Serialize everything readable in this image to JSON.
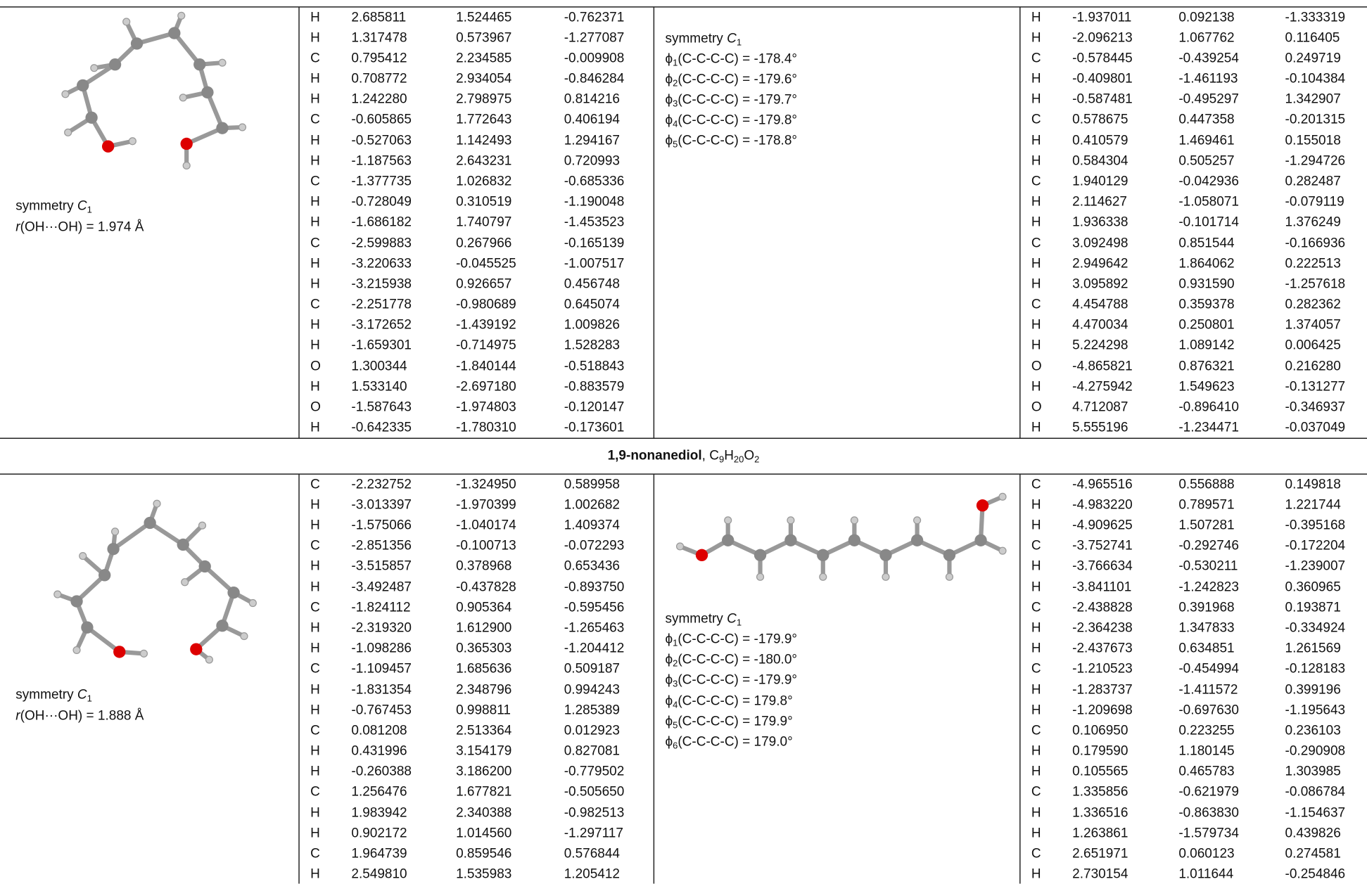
{
  "blocks": [
    {
      "left": {
        "symmetry": {
          "label": "symmetry",
          "group": "C",
          "sub": "1"
        },
        "distance": {
          "var": "r",
          "text": "(OH···OH) = 1.974 Å"
        }
      },
      "coords_a": [
        [
          "H",
          "2.685811",
          "1.524465",
          "-0.762371"
        ],
        [
          "H",
          "1.317478",
          "0.573967",
          "-1.277087"
        ],
        [
          "C",
          "0.795412",
          "2.234585",
          "-0.009908"
        ],
        [
          "H",
          "0.708772",
          "2.934054",
          "-0.846284"
        ],
        [
          "H",
          "1.242280",
          "2.798975",
          "0.814216"
        ],
        [
          "C",
          "-0.605865",
          "1.772643",
          "0.406194"
        ],
        [
          "H",
          "-0.527063",
          "1.142493",
          "1.294167"
        ],
        [
          "H",
          "-1.187563",
          "2.643231",
          "0.720993"
        ],
        [
          "C",
          "-1.377735",
          "1.026832",
          "-0.685336"
        ],
        [
          "H",
          "-0.728049",
          "0.310519",
          "-1.190048"
        ],
        [
          "H",
          "-1.686182",
          "1.740797",
          "-1.453523"
        ],
        [
          "C",
          "-2.599883",
          "0.267966",
          "-0.165139"
        ],
        [
          "H",
          "-3.220633",
          "-0.045525",
          "-1.007517"
        ],
        [
          "H",
          "-3.215938",
          "0.926657",
          "0.456748"
        ],
        [
          "C",
          "-2.251778",
          "-0.980689",
          "0.645074"
        ],
        [
          "H",
          "-3.172652",
          "-1.439192",
          "1.009826"
        ],
        [
          "H",
          "-1.659301",
          "-0.714975",
          "1.528283"
        ],
        [
          "O",
          "1.300344",
          "-1.840144",
          "-0.518843"
        ],
        [
          "H",
          "1.533140",
          "-2.697180",
          "-0.883579"
        ],
        [
          "O",
          "-1.587643",
          "-1.974803",
          "-0.120147"
        ],
        [
          "H",
          "-0.642335",
          "-1.780310",
          "-0.173601"
        ]
      ],
      "middle": {
        "symmetry": {
          "label": "symmetry",
          "group": "C",
          "sub": "1"
        },
        "dihedrals": [
          {
            "sym": "ϕ",
            "sub": "1",
            "text": "(C-C-C-C) = -178.4°"
          },
          {
            "sym": "ϕ",
            "sub": "2",
            "text": "(C-C-C-C) = -179.6°"
          },
          {
            "sym": "ϕ",
            "sub": "3",
            "text": "(C-C-C-C) = -179.7°"
          },
          {
            "sym": "ϕ",
            "sub": "4",
            "text": "(C-C-C-C) = -179.8°"
          },
          {
            "sym": "ϕ",
            "sub": "5",
            "text": "(C-C-C-C) = -178.8°"
          }
        ]
      },
      "coords_b": [
        [
          "H",
          "-1.937011",
          "0.092138",
          "-1.333319"
        ],
        [
          "H",
          "-2.096213",
          "1.067762",
          "0.116405"
        ],
        [
          "C",
          "-0.578445",
          "-0.439254",
          "0.249719"
        ],
        [
          "H",
          "-0.409801",
          "-1.461193",
          "-0.104384"
        ],
        [
          "H",
          "-0.587481",
          "-0.495297",
          "1.342907"
        ],
        [
          "C",
          "0.578675",
          "0.447358",
          "-0.201315"
        ],
        [
          "H",
          "0.410579",
          "1.469461",
          "0.155018"
        ],
        [
          "H",
          "0.584304",
          "0.505257",
          "-1.294726"
        ],
        [
          "C",
          "1.940129",
          "-0.042936",
          "0.282487"
        ],
        [
          "H",
          "2.114627",
          "-1.058071",
          "-0.079119"
        ],
        [
          "H",
          "1.936338",
          "-0.101714",
          "1.376249"
        ],
        [
          "C",
          "3.092498",
          "0.851544",
          "-0.166936"
        ],
        [
          "H",
          "2.949642",
          "1.864062",
          "0.222513"
        ],
        [
          "H",
          "3.095892",
          "0.931590",
          "-1.257618"
        ],
        [
          "C",
          "4.454788",
          "0.359378",
          "0.282362"
        ],
        [
          "H",
          "4.470034",
          "0.250801",
          "1.374057"
        ],
        [
          "H",
          "5.224298",
          "1.089142",
          "0.006425"
        ],
        [
          "O",
          "-4.865821",
          "0.876321",
          "0.216280"
        ],
        [
          "H",
          "-4.275942",
          "1.549623",
          "-0.131277"
        ],
        [
          "O",
          "4.712087",
          "-0.896410",
          "-0.346937"
        ],
        [
          "H",
          "5.555196",
          "-1.234471",
          "-0.037049"
        ]
      ]
    },
    {
      "left": {
        "symmetry": {
          "label": "symmetry",
          "group": "C",
          "sub": "1"
        },
        "distance": {
          "var": "r",
          "text": "(OH···OH) = 1.888 Å"
        }
      },
      "coords_a": [
        [
          "C",
          "-2.232752",
          "-1.324950",
          "0.589958"
        ],
        [
          "H",
          "-3.013397",
          "-1.970399",
          "1.002682"
        ],
        [
          "H",
          "-1.575066",
          "-1.040174",
          "1.409374"
        ],
        [
          "C",
          "-2.851356",
          "-0.100713",
          "-0.072293"
        ],
        [
          "H",
          "-3.515857",
          "0.378968",
          "0.653436"
        ],
        [
          "H",
          "-3.492487",
          "-0.437828",
          "-0.893750"
        ],
        [
          "C",
          "-1.824112",
          "0.905364",
          "-0.595456"
        ],
        [
          "H",
          "-2.319320",
          "1.612900",
          "-1.265463"
        ],
        [
          "H",
          "-1.098286",
          "0.365303",
          "-1.204412"
        ],
        [
          "C",
          "-1.109457",
          "1.685636",
          "0.509187"
        ],
        [
          "H",
          "-1.831354",
          "2.348796",
          "0.994243"
        ],
        [
          "H",
          "-0.767453",
          "0.998811",
          "1.285389"
        ],
        [
          "C",
          "0.081208",
          "2.513364",
          "0.012923"
        ],
        [
          "H",
          "0.431996",
          "3.154179",
          "0.827081"
        ],
        [
          "H",
          "-0.260388",
          "3.186200",
          "-0.779502"
        ],
        [
          "C",
          "1.256476",
          "1.677821",
          "-0.505650"
        ],
        [
          "H",
          "1.983942",
          "2.340388",
          "-0.982513"
        ],
        [
          "H",
          "0.902172",
          "1.014560",
          "-1.297117"
        ],
        [
          "C",
          "1.964739",
          "0.859546",
          "0.576844"
        ],
        [
          "H",
          "2.549810",
          "1.535983",
          "1.205412"
        ]
      ],
      "middle": {
        "symmetry": {
          "label": "symmetry",
          "group": "C",
          "sub": "1"
        },
        "dihedrals": [
          {
            "sym": "ϕ",
            "sub": "1",
            "text": "(C-C-C-C) = -179.9°"
          },
          {
            "sym": "ϕ",
            "sub": "2",
            "text": "(C-C-C-C) = -180.0°"
          },
          {
            "sym": "ϕ",
            "sub": "3",
            "text": "(C-C-C-C) = -179.9°"
          },
          {
            "sym": "ϕ",
            "sub": "4",
            "text": "(C-C-C-C) = 179.8°"
          },
          {
            "sym": "ϕ",
            "sub": "5",
            "text": "(C-C-C-C) = 179.9°"
          },
          {
            "sym": "ϕ",
            "sub": "6",
            "text": "(C-C-C-C) = 179.0°"
          }
        ]
      },
      "coords_b": [
        [
          "C",
          "-4.965516",
          "0.556888",
          "0.149818"
        ],
        [
          "H",
          "-4.983220",
          "0.789571",
          "1.221744"
        ],
        [
          "H",
          "-4.909625",
          "1.507281",
          "-0.395168"
        ],
        [
          "C",
          "-3.752741",
          "-0.292746",
          "-0.172204"
        ],
        [
          "H",
          "-3.766634",
          "-0.530211",
          "-1.239007"
        ],
        [
          "H",
          "-3.841101",
          "-1.242823",
          "0.360965"
        ],
        [
          "C",
          "-2.438828",
          "0.391968",
          "0.193871"
        ],
        [
          "H",
          "-2.364238",
          "1.347833",
          "-0.334924"
        ],
        [
          "H",
          "-2.437673",
          "0.634851",
          "1.261569"
        ],
        [
          "C",
          "-1.210523",
          "-0.454994",
          "-0.128183"
        ],
        [
          "H",
          "-1.283737",
          "-1.411572",
          "0.399196"
        ],
        [
          "H",
          "-1.209698",
          "-0.697630",
          "-1.195643"
        ],
        [
          "C",
          "0.106950",
          "0.223255",
          "0.236103"
        ],
        [
          "H",
          "0.179590",
          "1.180145",
          "-0.290908"
        ],
        [
          "H",
          "0.105565",
          "0.465783",
          "1.303985"
        ],
        [
          "C",
          "1.335856",
          "-0.621979",
          "-0.086784"
        ],
        [
          "H",
          "1.336516",
          "-0.863830",
          "-1.154637"
        ],
        [
          "H",
          "1.263861",
          "-1.579734",
          "0.439826"
        ],
        [
          "C",
          "2.651971",
          "0.060123",
          "0.274581"
        ],
        [
          "H",
          "2.730154",
          "1.011644",
          "-0.254846"
        ]
      ]
    }
  ],
  "heading": {
    "name": "1,9-nonanediol",
    "sep": ", ",
    "formula": [
      {
        "el": "C",
        "n": "9"
      },
      {
        "el": "H",
        "n": "20"
      },
      {
        "el": "O",
        "n": "2"
      }
    ]
  }
}
